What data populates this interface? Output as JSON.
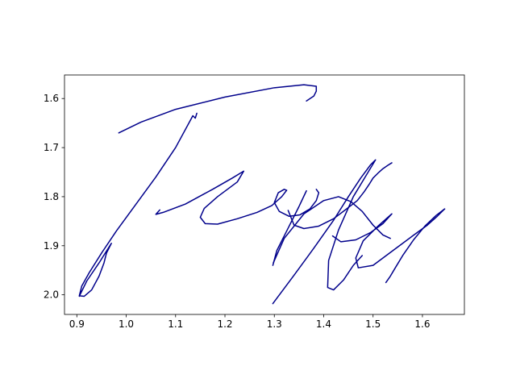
{
  "chart_data": {
    "type": "line",
    "title": "",
    "xlabel": "",
    "ylabel": "",
    "xlim": [
      0.875,
      1.685
    ],
    "ylim": [
      2.04,
      1.552
    ],
    "y_inverted": true,
    "grid": false,
    "x_ticks": [
      {
        "value": 0.9,
        "label": "0.9"
      },
      {
        "value": 1.0,
        "label": "1.0"
      },
      {
        "value": 1.1,
        "label": "1.1"
      },
      {
        "value": 1.2,
        "label": "1.2"
      },
      {
        "value": 1.3,
        "label": "1.3"
      },
      {
        "value": 1.4,
        "label": "1.4"
      },
      {
        "value": 1.5,
        "label": "1.5"
      },
      {
        "value": 1.6,
        "label": "1.6"
      }
    ],
    "y_ticks": [
      {
        "value": 1.6,
        "label": "1.6"
      },
      {
        "value": 1.7,
        "label": "1.7"
      },
      {
        "value": 1.8,
        "label": "1.8"
      },
      {
        "value": 1.9,
        "label": "1.9"
      },
      {
        "value": 2.0,
        "label": "2.0"
      }
    ],
    "series": [
      {
        "color": "#00008b",
        "x": [
          1.365,
          1.38,
          1.385,
          1.385,
          1.36,
          1.3,
          1.2,
          1.1,
          1.03,
          0.985
        ],
        "y": [
          1.605,
          1.595,
          1.585,
          1.575,
          1.572,
          1.578,
          1.597,
          1.622,
          1.648,
          1.67
        ]
      },
      {
        "color": "#00008b",
        "x": [
          1.143,
          1.14,
          1.135,
          1.1,
          1.06,
          1.02,
          0.98,
          0.95,
          0.925,
          0.91,
          0.905,
          0.915,
          0.93,
          0.945,
          0.955,
          0.96,
          0.97,
          0.945,
          0.92,
          0.905
        ],
        "y": [
          1.63,
          1.64,
          1.635,
          1.7,
          1.76,
          1.815,
          1.87,
          1.915,
          1.955,
          1.982,
          2.002,
          2.003,
          1.99,
          1.962,
          1.935,
          1.915,
          1.895,
          1.935,
          1.972,
          2.003
        ]
      },
      {
        "color": "#00008b",
        "x": [
          1.068,
          1.06,
          1.075,
          1.12,
          1.175,
          1.215,
          1.238,
          1.225,
          1.185,
          1.158,
          1.15,
          1.16,
          1.185,
          1.225,
          1.265,
          1.295,
          1.315,
          1.325,
          1.32,
          1.308,
          1.3,
          1.31,
          1.33,
          1.352,
          1.372,
          1.385,
          1.39,
          1.385
        ],
        "y": [
          1.827,
          1.836,
          1.832,
          1.815,
          1.785,
          1.762,
          1.748,
          1.77,
          1.8,
          1.824,
          1.842,
          1.855,
          1.856,
          1.845,
          1.832,
          1.818,
          1.8,
          1.787,
          1.785,
          1.792,
          1.812,
          1.83,
          1.84,
          1.837,
          1.825,
          1.808,
          1.792,
          1.785
        ]
      },
      {
        "color": "#00008b",
        "x": [
          1.365,
          1.35,
          1.325,
          1.305,
          1.297
        ],
        "y": [
          1.788,
          1.82,
          1.87,
          1.91,
          1.94
        ]
      },
      {
        "color": "#00008b",
        "x": [
          1.297,
          1.34,
          1.38,
          1.42,
          1.45,
          1.475,
          1.495,
          1.505,
          1.49,
          1.46,
          1.43,
          1.41,
          1.408,
          1.42,
          1.44,
          1.46,
          1.478
        ],
        "y": [
          2.018,
          1.96,
          1.905,
          1.848,
          1.8,
          1.762,
          1.735,
          1.725,
          1.75,
          1.8,
          1.868,
          1.93,
          1.985,
          1.99,
          1.97,
          1.94,
          1.92
        ]
      },
      {
        "color": "#00008b",
        "x": [
          1.328,
          1.34,
          1.36,
          1.39,
          1.42,
          1.445,
          1.468,
          1.482,
          1.492,
          1.5,
          1.51,
          1.52,
          1.53,
          1.538
        ],
        "y": [
          1.828,
          1.858,
          1.865,
          1.86,
          1.845,
          1.826,
          1.808,
          1.79,
          1.775,
          1.762,
          1.752,
          1.743,
          1.736,
          1.731
        ]
      },
      {
        "color": "#00008b",
        "x": [
          1.298,
          1.32,
          1.36,
          1.4,
          1.43,
          1.455,
          1.478,
          1.5,
          1.52,
          1.535
        ],
        "y": [
          1.935,
          1.885,
          1.835,
          1.808,
          1.8,
          1.81,
          1.83,
          1.858,
          1.878,
          1.885
        ]
      },
      {
        "color": "#00008b",
        "x": [
          1.418,
          1.435,
          1.465,
          1.495,
          1.52,
          1.538,
          1.51,
          1.48,
          1.465,
          1.47,
          1.5,
          1.54,
          1.58,
          1.61,
          1.63,
          1.645
        ],
        "y": [
          1.88,
          1.892,
          1.888,
          1.873,
          1.855,
          1.835,
          1.86,
          1.89,
          1.925,
          1.945,
          1.94,
          1.91,
          1.88,
          1.858,
          1.84,
          1.825
        ]
      },
      {
        "color": "#00008b",
        "x": [
          1.645,
          1.628,
          1.605,
          1.582,
          1.56,
          1.545,
          1.535,
          1.526
        ],
        "y": [
          1.825,
          1.838,
          1.86,
          1.888,
          1.92,
          1.945,
          1.962,
          1.975
        ]
      }
    ]
  }
}
